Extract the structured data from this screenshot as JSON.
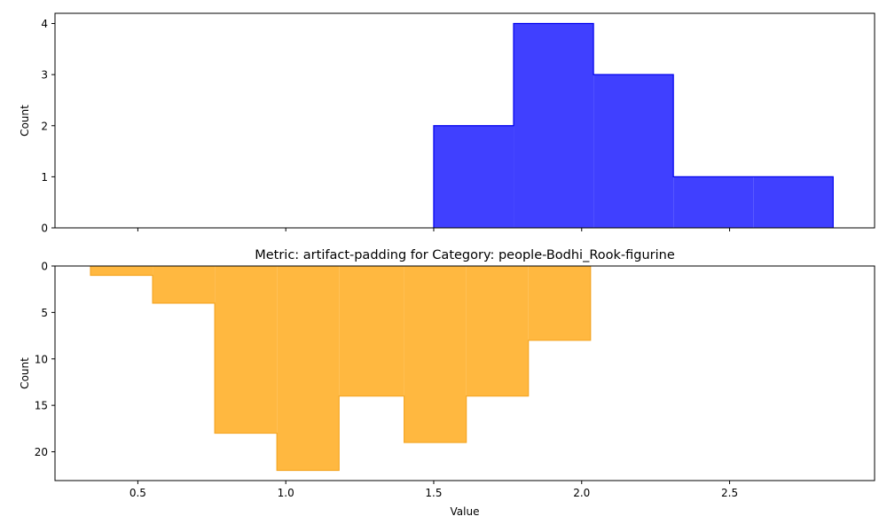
{
  "chart_data": [
    {
      "type": "histogram",
      "title": "",
      "xlabel": "",
      "ylabel": "Count",
      "xlim": [
        0.22,
        2.99
      ],
      "ylim": [
        0,
        4.2
      ],
      "y_inverted": false,
      "x_tick_labels_visible": false,
      "xticks": [
        0.5,
        1.0,
        1.5,
        2.0,
        2.5
      ],
      "yticks": [
        0,
        1,
        2,
        3,
        4
      ],
      "ytick_labels": [
        "0",
        "1",
        "2",
        "3",
        "4"
      ],
      "fill_color": "#4040ff",
      "edge_color": "#0000ee",
      "bins": [
        {
          "start": 1.5,
          "end": 1.77,
          "count": 2
        },
        {
          "start": 1.77,
          "end": 2.04,
          "count": 4
        },
        {
          "start": 2.04,
          "end": 2.31,
          "count": 3
        },
        {
          "start": 2.31,
          "end": 2.58,
          "count": 1
        },
        {
          "start": 2.58,
          "end": 2.85,
          "count": 1
        }
      ]
    },
    {
      "type": "histogram",
      "title": "Metric: artifact-padding for Category: people-Bodhi_Rook-figurine",
      "xlabel": "Value",
      "ylabel": "Count",
      "xlim": [
        0.22,
        2.99
      ],
      "ylim": [
        0,
        23.1
      ],
      "y_inverted": true,
      "x_tick_labels_visible": true,
      "xticks": [
        0.5,
        1.0,
        1.5,
        2.0,
        2.5
      ],
      "xtick_labels": [
        "0.5",
        "1.0",
        "1.5",
        "2.0",
        "2.5"
      ],
      "yticks": [
        0,
        5,
        10,
        15,
        20
      ],
      "ytick_labels": [
        "0",
        "5",
        "10",
        "15",
        "20"
      ],
      "fill_color": "#ffb840",
      "edge_color": "#f5a623",
      "bins": [
        {
          "start": 0.34,
          "end": 0.55,
          "count": 1
        },
        {
          "start": 0.55,
          "end": 0.76,
          "count": 4
        },
        {
          "start": 0.76,
          "end": 0.97,
          "count": 18
        },
        {
          "start": 0.97,
          "end": 1.18,
          "count": 22
        },
        {
          "start": 1.18,
          "end": 1.4,
          "count": 14
        },
        {
          "start": 1.4,
          "end": 1.61,
          "count": 19
        },
        {
          "start": 1.61,
          "end": 1.82,
          "count": 14
        },
        {
          "start": 1.82,
          "end": 2.03,
          "count": 8
        }
      ]
    }
  ]
}
